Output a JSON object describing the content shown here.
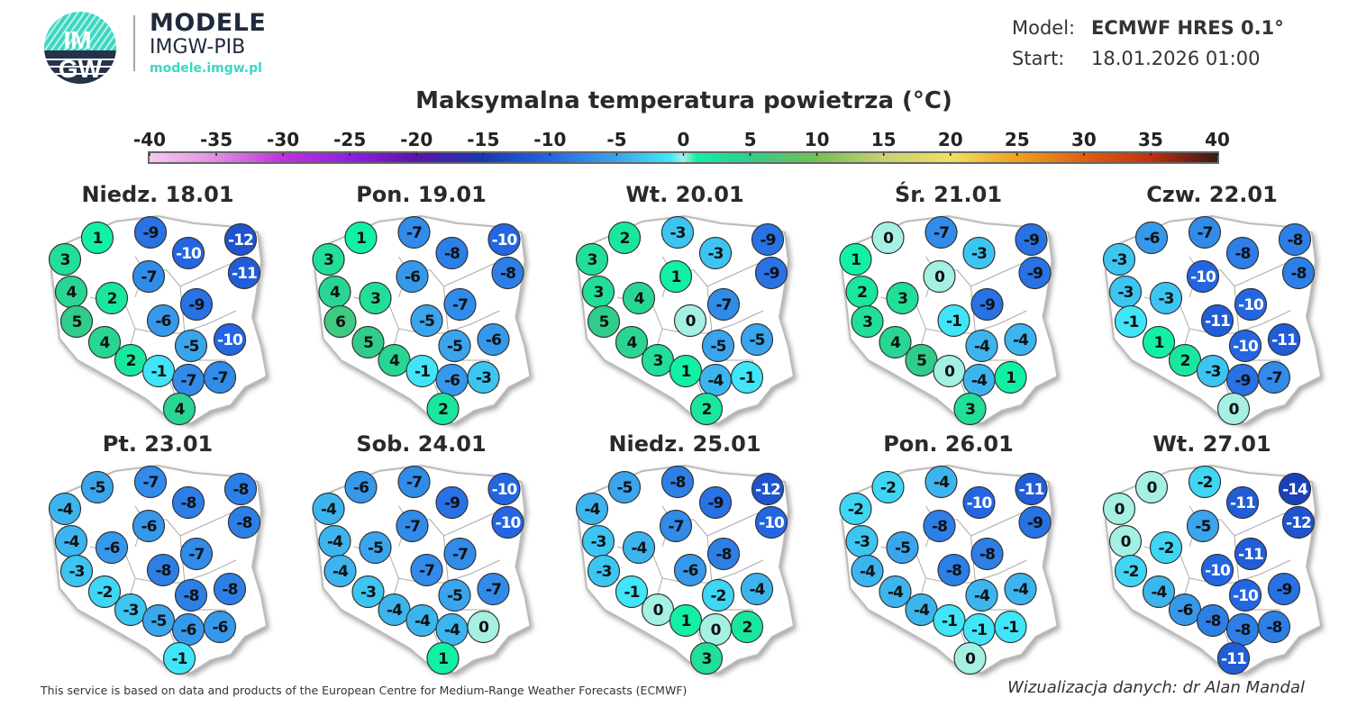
{
  "brand": {
    "logo_text_top": "IM",
    "logo_text_bottom": "GW",
    "name": "MODELE",
    "org": "IMGW-PIB",
    "url": "modele.imgw.pl"
  },
  "meta": {
    "model_label": "Model:",
    "model_value": "ECMWF HRES 0.1°",
    "start_label": "Start:",
    "start_value": "18.01.2026 01:00"
  },
  "title": "Maksymalna temperatura powietrza (°C)",
  "colorbar": {
    "ticks": [
      "-40",
      "-35",
      "-30",
      "-25",
      "-20",
      "-15",
      "-10",
      "-5",
      "0",
      "5",
      "10",
      "15",
      "20",
      "25",
      "30",
      "35",
      "40"
    ],
    "range": [
      -40,
      40
    ],
    "stops": [
      {
        "v": -40,
        "c": "#f8c8f2"
      },
      {
        "v": -35,
        "c": "#e08ee0"
      },
      {
        "v": -30,
        "c": "#c030e0"
      },
      {
        "v": -25,
        "c": "#9020e0"
      },
      {
        "v": -20,
        "c": "#5a14a8"
      },
      {
        "v": -15,
        "c": "#1838b0"
      },
      {
        "v": -10,
        "c": "#2466e2"
      },
      {
        "v": -5,
        "c": "#3aa4ec"
      },
      {
        "v": -1,
        "c": "#40e6f8"
      },
      {
        "v": 0,
        "c": "#a4f0e2"
      },
      {
        "v": 1,
        "c": "#12f0a4"
      },
      {
        "v": 5,
        "c": "#30cc8c"
      },
      {
        "v": 10,
        "c": "#74c050"
      },
      {
        "v": 15,
        "c": "#c8d070"
      },
      {
        "v": 20,
        "c": "#f0e060"
      },
      {
        "v": 25,
        "c": "#f0a020"
      },
      {
        "v": 30,
        "c": "#e06010"
      },
      {
        "v": 35,
        "c": "#c03010"
      },
      {
        "v": 40,
        "c": "#3a1818"
      }
    ]
  },
  "days": [
    {
      "title": "Niedz. 18.01",
      "values": [
        1,
        -9,
        -10,
        -12,
        3,
        -11,
        4,
        -7,
        2,
        -9,
        5,
        -6,
        4,
        -10,
        -5,
        2,
        -1,
        -7,
        -7,
        4
      ]
    },
    {
      "title": "Pon. 19.01",
      "values": [
        1,
        -7,
        -8,
        -10,
        3,
        -8,
        4,
        -6,
        3,
        -7,
        6,
        -5,
        5,
        -6,
        -5,
        4,
        -1,
        -6,
        -3,
        2
      ]
    },
    {
      "title": "Wt. 20.01",
      "values": [
        2,
        -3,
        -3,
        -9,
        3,
        -9,
        3,
        1,
        4,
        -7,
        5,
        0,
        4,
        -5,
        -5,
        3,
        1,
        -4,
        -1,
        2
      ]
    },
    {
      "title": "Śr. 21.01",
      "values": [
        0,
        -7,
        -3,
        -9,
        1,
        -9,
        2,
        0,
        3,
        -9,
        3,
        -1,
        4,
        -4,
        -4,
        5,
        0,
        -4,
        1,
        3
      ]
    },
    {
      "title": "Czw. 22.01",
      "values": [
        -6,
        -7,
        -8,
        -8,
        -3,
        -8,
        -3,
        -10,
        -3,
        -10,
        -1,
        -11,
        1,
        -11,
        -10,
        2,
        -3,
        -9,
        -7,
        0
      ]
    },
    {
      "title": "Pt. 23.01",
      "values": [
        -5,
        -7,
        -8,
        -8,
        -4,
        -8,
        -4,
        -6,
        -6,
        -7,
        -3,
        -8,
        -2,
        -8,
        -8,
        -3,
        -5,
        -6,
        -6,
        -1
      ]
    },
    {
      "title": "Sob. 24.01",
      "values": [
        -6,
        -7,
        -9,
        -10,
        -4,
        -10,
        -4,
        -7,
        -5,
        -7,
        -4,
        -7,
        -3,
        -7,
        -5,
        -4,
        -4,
        -4,
        0,
        1
      ]
    },
    {
      "title": "Niedz. 25.01",
      "values": [
        -5,
        -8,
        -9,
        -12,
        -4,
        -10,
        -3,
        -7,
        -4,
        -8,
        -3,
        -6,
        -1,
        -4,
        -2,
        0,
        1,
        0,
        2,
        3
      ]
    },
    {
      "title": "Pon. 26.01",
      "values": [
        -2,
        -4,
        -10,
        -11,
        -2,
        -9,
        -3,
        -8,
        -5,
        -8,
        -4,
        -8,
        -4,
        -4,
        -4,
        -4,
        -1,
        -1,
        -1,
        0
      ]
    },
    {
      "title": "Wt. 27.01",
      "values": [
        0,
        -2,
        -11,
        -14,
        0,
        -12,
        0,
        -5,
        -2,
        -11,
        -2,
        -10,
        -4,
        -9,
        -10,
        -6,
        -8,
        -8,
        -8,
        -11
      ]
    }
  ],
  "footer": {
    "source": "This service is based on data and products of the European Centre for Medium-Range Weather Forecasts (ECMWF)",
    "credit": "Wizualizacja danych: dr Alan Mandal"
  }
}
